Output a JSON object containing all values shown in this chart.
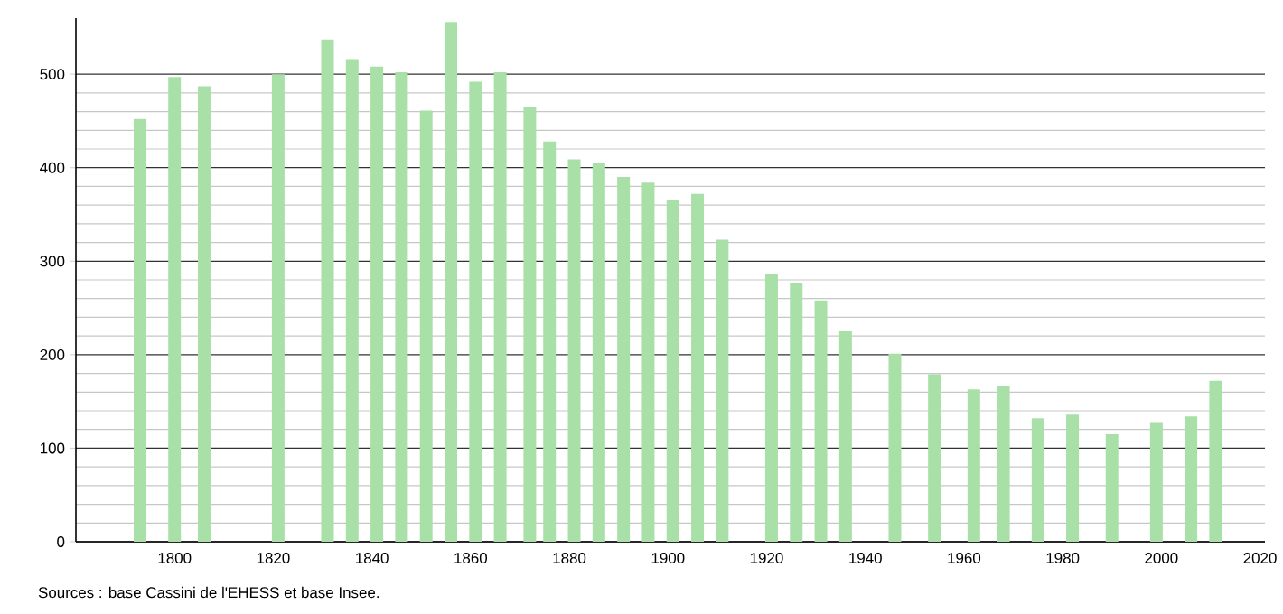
{
  "chart_data": {
    "type": "bar",
    "x": [
      1793,
      1800,
      1806,
      1821,
      1831,
      1836,
      1841,
      1846,
      1851,
      1856,
      1861,
      1866,
      1872,
      1876,
      1881,
      1886,
      1891,
      1896,
      1901,
      1906,
      1911,
      1921,
      1926,
      1931,
      1936,
      1946,
      1954,
      1962,
      1968,
      1975,
      1982,
      1990,
      1999,
      2006,
      2011
    ],
    "values": [
      452,
      497,
      487,
      500,
      537,
      516,
      508,
      502,
      461,
      556,
      492,
      502,
      465,
      428,
      409,
      405,
      390,
      384,
      366,
      372,
      323,
      286,
      277,
      258,
      225,
      201,
      179,
      163,
      167,
      132,
      136,
      115,
      128,
      134,
      172
    ],
    "color": "#a8e0a8",
    "xlim": [
      1780,
      2021
    ],
    "xticks": [
      1800,
      1820,
      1840,
      1860,
      1880,
      1900,
      1920,
      1940,
      1960,
      1980,
      2000,
      2020
    ],
    "ylim": [
      0,
      560
    ],
    "yticks": [
      0,
      100,
      200,
      300,
      400,
      500
    ],
    "grid": "y",
    "annotations": [
      "Sources : base Cassini de l'EHESS et base Insee."
    ]
  }
}
